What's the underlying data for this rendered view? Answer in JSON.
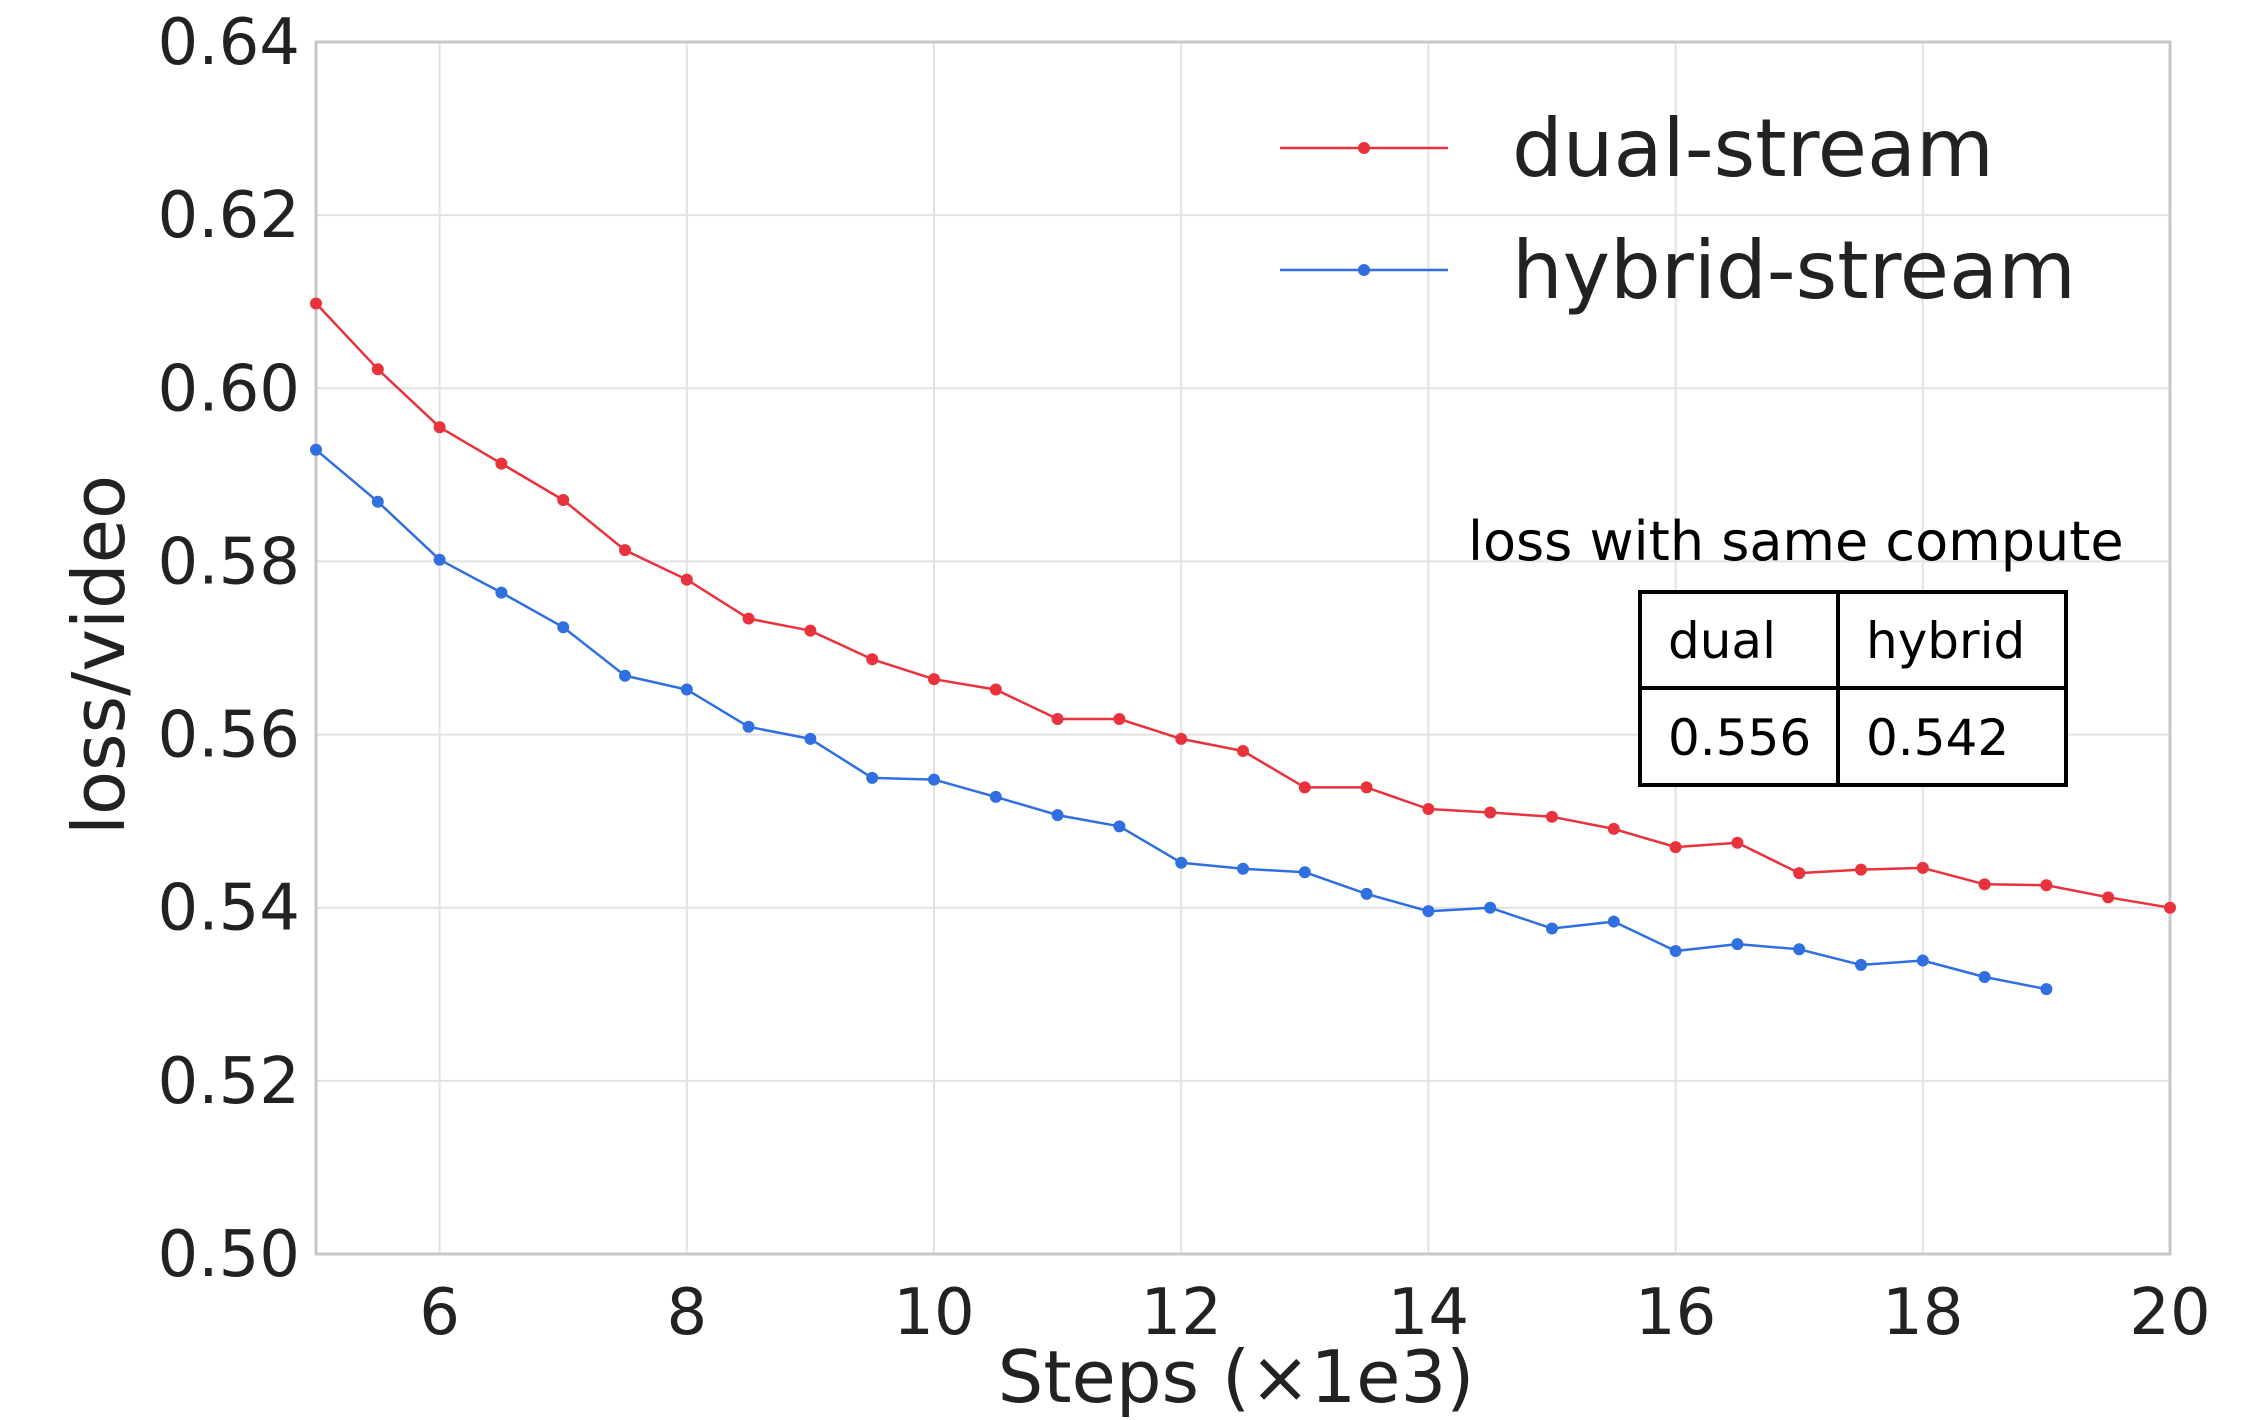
{
  "chart_data": {
    "type": "line",
    "xlabel": "Steps (×1e3)",
    "ylabel": "loss/video",
    "xlim": [
      5,
      20
    ],
    "ylim": [
      0.5,
      0.64
    ],
    "xticks": [
      "6",
      "8",
      "10",
      "12",
      "14",
      "16",
      "18",
      "20"
    ],
    "xtick_values": [
      6,
      8,
      10,
      12,
      14,
      16,
      18,
      20
    ],
    "yticks": [
      "0.50",
      "0.52",
      "0.54",
      "0.56",
      "0.58",
      "0.60",
      "0.62",
      "0.64"
    ],
    "ytick_values": [
      0.5,
      0.52,
      0.54,
      0.56,
      0.58,
      0.6,
      0.62,
      0.64
    ],
    "grid": true,
    "legend_position": "top-right",
    "series": [
      {
        "name": "dual-stream",
        "color": "#e8323c",
        "x": [
          5,
          5.5,
          6,
          6.5,
          7,
          7.5,
          8,
          8.5,
          9,
          9.5,
          10,
          10.5,
          11,
          11.5,
          12,
          12.5,
          13,
          13.5,
          14,
          14.5,
          15,
          15.5,
          16,
          16.5,
          17,
          17.5,
          18,
          18.5,
          19,
          19.5,
          20
        ],
        "y": [
          0.6098,
          0.6022,
          0.5955,
          0.5913,
          0.5871,
          0.5813,
          0.5779,
          0.5734,
          0.572,
          0.5687,
          0.5664,
          0.5652,
          0.5618,
          0.5618,
          0.5595,
          0.5581,
          0.5539,
          0.5539,
          0.5514,
          0.551,
          0.5505,
          0.5491,
          0.547,
          0.5475,
          0.544,
          0.5444,
          0.5446,
          0.5427,
          0.5426,
          0.5412,
          0.54
        ]
      },
      {
        "name": "hybrid-stream",
        "color": "#2f6fe0",
        "x": [
          5,
          5.5,
          6,
          6.5,
          7,
          7.5,
          8,
          8.5,
          9,
          9.5,
          10,
          10.5,
          11,
          11.5,
          12,
          12.5,
          13,
          13.5,
          14,
          14.5,
          15,
          15.5,
          16,
          16.5,
          17,
          17.5,
          18,
          18.5,
          19
        ],
        "y": [
          0.5929,
          0.5869,
          0.5802,
          0.5764,
          0.5724,
          0.5668,
          0.5652,
          0.5609,
          0.5595,
          0.555,
          0.5548,
          0.5528,
          0.5507,
          0.5494,
          0.5452,
          0.5445,
          0.5441,
          0.5416,
          0.5396,
          0.54,
          0.5376,
          0.5384,
          0.535,
          0.5358,
          0.5352,
          0.5334,
          0.5339,
          0.532,
          0.5306
        ]
      }
    ],
    "inset_table": {
      "title": "loss with same compute",
      "headers": [
        "dual",
        "hybrid"
      ],
      "values": [
        "0.556",
        "0.542"
      ]
    }
  }
}
